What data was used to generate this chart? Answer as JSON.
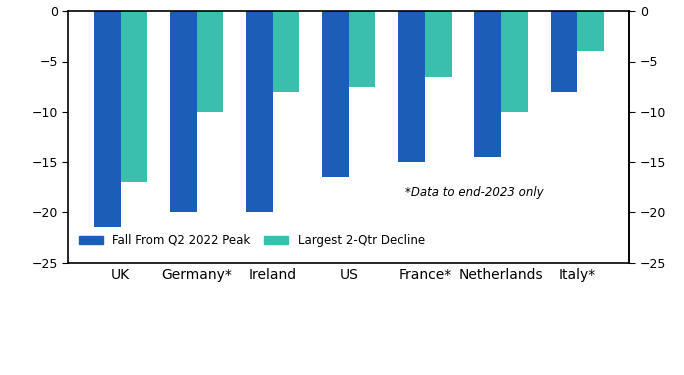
{
  "categories": [
    "UK",
    "Germany*",
    "Ireland",
    "US",
    "France*",
    "Netherlands",
    "Italy*"
  ],
  "fall_from_peak": [
    -21.5,
    -20.0,
    -20.0,
    -16.5,
    -15.0,
    -14.5,
    -8.0
  ],
  "largest_2qtr": [
    -17.0,
    -10.0,
    -8.0,
    -7.5,
    -6.5,
    -10.0,
    -4.0
  ],
  "bar_color_blue": "#1a5eb8",
  "bar_color_teal": "#3bbfad",
  "ylim": [
    -25,
    0
  ],
  "yticks": [
    0,
    -5,
    -10,
    -15,
    -20,
    -25
  ],
  "annotation": "*Data to end-2023 only",
  "legend_label_blue": "Fall From Q2 2022 Peak",
  "legend_label_teal": "Largest 2-Qtr Decline",
  "bar_width": 0.35
}
